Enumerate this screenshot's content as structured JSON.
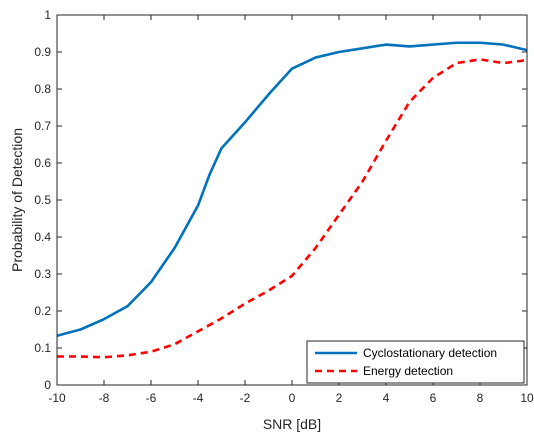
{
  "chart_data": {
    "type": "line",
    "xlabel": "SNR [dB]",
    "ylabel": "Probability of Detection",
    "xlim": [
      -10,
      10
    ],
    "ylim": [
      0,
      1
    ],
    "x_ticks": [
      -10,
      -8,
      -6,
      -4,
      -2,
      0,
      2,
      4,
      6,
      8,
      10
    ],
    "y_ticks": [
      0,
      0.1,
      0.2,
      0.3,
      0.4,
      0.5,
      0.6,
      0.7,
      0.8,
      0.9,
      1
    ],
    "grid": false,
    "legend_position": "bottom-right",
    "series": [
      {
        "name": "Cyclostationary detection",
        "color": "#0072BD",
        "style": "solid",
        "x": [
          -10,
          -9,
          -8,
          -7,
          -6,
          -5,
          -4,
          -3.5,
          -3,
          -2,
          -1,
          0,
          1,
          2,
          3,
          4,
          5,
          6,
          7,
          8,
          9,
          10
        ],
        "y": [
          0.133,
          0.15,
          0.178,
          0.213,
          0.278,
          0.37,
          0.485,
          0.57,
          0.64,
          0.71,
          0.785,
          0.855,
          0.885,
          0.9,
          0.91,
          0.92,
          0.915,
          0.92,
          0.925,
          0.925,
          0.92,
          0.905
        ]
      },
      {
        "name": "Energy detection",
        "color": "#FF0000",
        "style": "dashed",
        "x": [
          -10,
          -9,
          -8,
          -7,
          -6,
          -5,
          -4,
          -3,
          -2,
          -1,
          0,
          1,
          2,
          3,
          4,
          5,
          6,
          7,
          8,
          9,
          10
        ],
        "y": [
          0.077,
          0.077,
          0.075,
          0.08,
          0.09,
          0.11,
          0.145,
          0.18,
          0.22,
          0.255,
          0.295,
          0.37,
          0.46,
          0.55,
          0.66,
          0.765,
          0.83,
          0.87,
          0.88,
          0.87,
          0.878
        ]
      }
    ]
  }
}
